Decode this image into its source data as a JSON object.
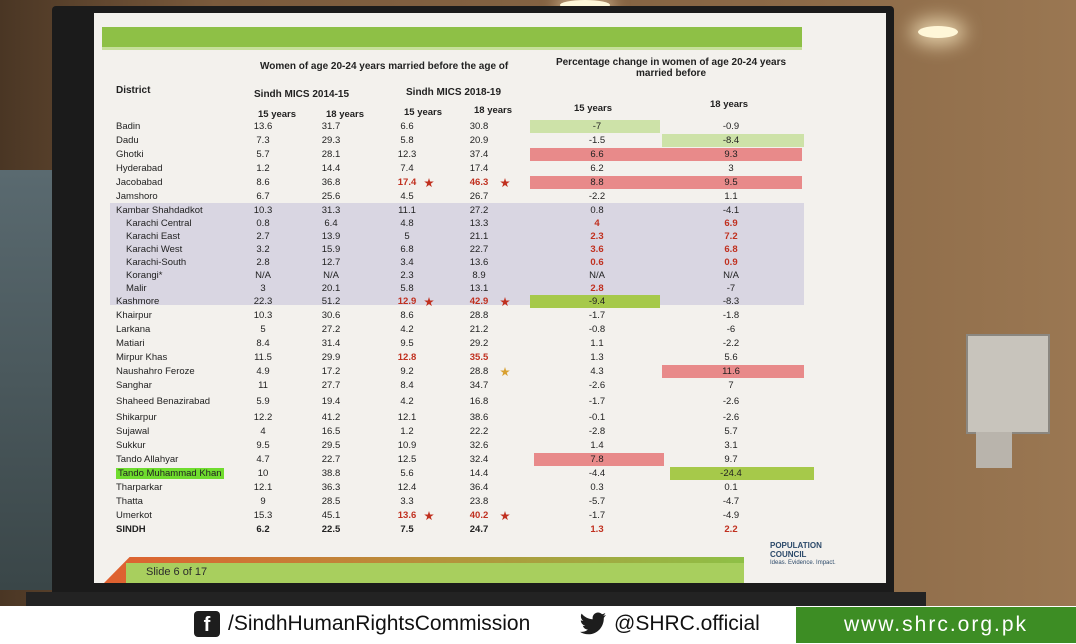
{
  "title_left": "Women of age 20-24 years married before the age of",
  "title_right": "Percentage change in women of age 20-24 years married before",
  "col_district": "District",
  "col_mics1": "Sindh MICS 2014-15",
  "col_mics2": "Sindh MICS 2018-19",
  "sub_15": "15 years",
  "sub_18": "18 years",
  "rows": [
    {
      "d": "Badin",
      "a": "13.6",
      "b": "31.7",
      "c": "6.6",
      "e": "30.8",
      "f": "-7",
      "g": "-0.9"
    },
    {
      "d": "Dadu",
      "a": "7.3",
      "b": "29.3",
      "c": "5.8",
      "e": "20.9",
      "f": "-1.5",
      "g": "-8.4"
    },
    {
      "d": "Ghotki",
      "a": "5.7",
      "b": "28.1",
      "c": "12.3",
      "e": "37.4",
      "f": "6.6",
      "g": "9.3"
    },
    {
      "d": "Hyderabad",
      "a": "1.2",
      "b": "14.4",
      "c": "7.4",
      "e": "17.4",
      "f": "6.2",
      "g": "3"
    },
    {
      "d": "Jacobabad",
      "a": "8.6",
      "b": "36.8",
      "c": "17.4",
      "e": "46.3",
      "f": "8.8",
      "g": "9.5"
    },
    {
      "d": "Jamshoro",
      "a": "6.7",
      "b": "25.6",
      "c": "4.5",
      "e": "26.7",
      "f": "-2.2",
      "g": "1.1"
    },
    {
      "d": "Kambar Shahdadkot",
      "a": "10.3",
      "b": "31.3",
      "c": "11.1",
      "e": "27.2",
      "f": "0.8",
      "g": "-4.1"
    },
    {
      "d": "Karachi Central",
      "a": "0.8",
      "b": "6.4",
      "c": "4.8",
      "e": "13.3",
      "f": "4",
      "g": "6.9"
    },
    {
      "d": "Karachi East",
      "a": "2.7",
      "b": "13.9",
      "c": "5",
      "e": "21.1",
      "f": "2.3",
      "g": "7.2"
    },
    {
      "d": "Karachi West",
      "a": "3.2",
      "b": "15.9",
      "c": "6.8",
      "e": "22.7",
      "f": "3.6",
      "g": "6.8"
    },
    {
      "d": "Karachi-South",
      "a": "2.8",
      "b": "12.7",
      "c": "3.4",
      "e": "13.6",
      "f": "0.6",
      "g": "0.9"
    },
    {
      "d": "Korangi*",
      "a": "N/A",
      "b": "N/A",
      "c": "2.3",
      "e": "8.9",
      "f": "N/A",
      "g": "N/A"
    },
    {
      "d": "Malir",
      "a": "3",
      "b": "20.1",
      "c": "5.8",
      "e": "13.1",
      "f": "2.8",
      "g": "-7"
    },
    {
      "d": "Kashmore",
      "a": "22.3",
      "b": "51.2",
      "c": "12.9",
      "e": "42.9",
      "f": "-9.4",
      "g": "-8.3"
    },
    {
      "d": "Khairpur",
      "a": "10.3",
      "b": "30.6",
      "c": "8.6",
      "e": "28.8",
      "f": "-1.7",
      "g": "-1.8"
    },
    {
      "d": "Larkana",
      "a": "5",
      "b": "27.2",
      "c": "4.2",
      "e": "21.2",
      "f": "-0.8",
      "g": "-6"
    },
    {
      "d": "Matiari",
      "a": "8.4",
      "b": "31.4",
      "c": "9.5",
      "e": "29.2",
      "f": "1.1",
      "g": "-2.2"
    },
    {
      "d": "Mirpur Khas",
      "a": "11.5",
      "b": "29.9",
      "c": "12.8",
      "e": "35.5",
      "f": "1.3",
      "g": "5.6"
    },
    {
      "d": "Naushahro Feroze",
      "a": "4.9",
      "b": "17.2",
      "c": "9.2",
      "e": "28.8",
      "f": "4.3",
      "g": "11.6"
    },
    {
      "d": "Sanghar",
      "a": "11",
      "b": "27.7",
      "c": "8.4",
      "e": "34.7",
      "f": "-2.6",
      "g": "7"
    },
    {
      "d": "Shaheed Benazirabad",
      "a": "5.9",
      "b": "19.4",
      "c": "4.2",
      "e": "16.8",
      "f": "-1.7",
      "g": "-2.6"
    },
    {
      "d": "Shikarpur",
      "a": "12.2",
      "b": "41.2",
      "c": "12.1",
      "e": "38.6",
      "f": "-0.1",
      "g": "-2.6"
    },
    {
      "d": "Sujawal",
      "a": "4",
      "b": "16.5",
      "c": "1.2",
      "e": "22.2",
      "f": "-2.8",
      "g": "5.7"
    },
    {
      "d": "Sukkur",
      "a": "9.5",
      "b": "29.5",
      "c": "10.9",
      "e": "32.6",
      "f": "1.4",
      "g": "3.1"
    },
    {
      "d": "Tando Allahyar",
      "a": "4.7",
      "b": "22.7",
      "c": "12.5",
      "e": "32.4",
      "f": "7.8",
      "g": "9.7"
    },
    {
      "d": "Tando Muhammad Khan",
      "a": "10",
      "b": "38.8",
      "c": "5.6",
      "e": "14.4",
      "f": "-4.4",
      "g": "-24.4"
    },
    {
      "d": "Tharparkar",
      "a": "12.1",
      "b": "36.3",
      "c": "12.4",
      "e": "36.4",
      "f": "0.3",
      "g": "0.1"
    },
    {
      "d": "Thatta",
      "a": "9",
      "b": "28.5",
      "c": "3.3",
      "e": "23.8",
      "f": "-5.7",
      "g": "-4.7"
    },
    {
      "d": "Umerkot",
      "a": "15.3",
      "b": "45.1",
      "c": "13.6",
      "e": "40.2",
      "f": "-1.7",
      "g": "-4.9"
    },
    {
      "d": "SINDH",
      "a": "6.2",
      "b": "22.5",
      "c": "7.5",
      "e": "24.7",
      "f": "1.3",
      "g": "2.2"
    }
  ],
  "slide_label": "Slide 6 of 17",
  "logo_text": "POPULATION COUNCIL",
  "logo_tagline": "Ideas. Evidence. Impact.",
  "footer_fb_icon": "f",
  "footer_fb": "/SindhHumanRightsCommission",
  "footer_tw_icon": "twitter-bird",
  "footer_tw": "@SHRC.official",
  "footer_web": "www.shrc.org.pk",
  "colors": {
    "green": "#8ec046",
    "red": "#e88a8a",
    "footer_green": "#3d8d24"
  }
}
